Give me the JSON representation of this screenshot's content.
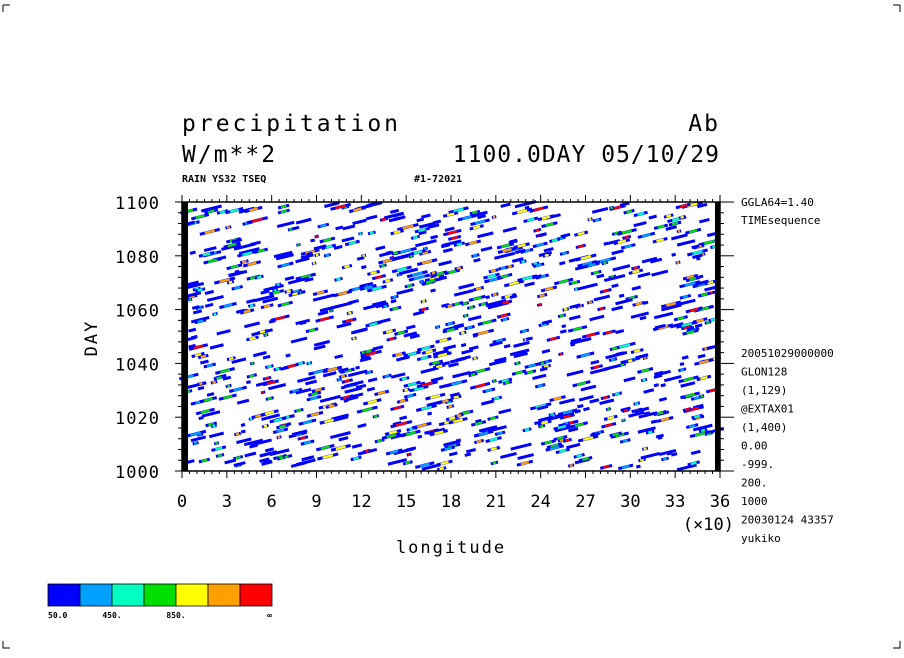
{
  "header": {
    "title": "precipitation",
    "units": "W/m**2",
    "corner_label": "Ab",
    "time_label": "1100.0DAY 05/10/29",
    "sub_left": "RAIN YS32 TSEQ",
    "sub_mid": "#1-72021"
  },
  "side_info": {
    "top": [
      "GGLA64=1.40",
      "TIMEsequence"
    ],
    "bottom": [
      "20051029000000",
      "GLON128",
      "(1,129)",
      "@EXTAX01",
      "(1,400)",
      "0.00",
      "-999.",
      "200.",
      "1000",
      "20030124  43357",
      "yukiko"
    ]
  },
  "chart_data": {
    "type": "heatmap",
    "xlabel": "longitude",
    "ylabel": "DAY",
    "x_multiplier_label": "(×10)",
    "xlim": [
      0,
      36
    ],
    "ylim": [
      1000,
      1100
    ],
    "x_ticks": [
      0,
      3,
      6,
      9,
      12,
      15,
      18,
      21,
      24,
      27,
      30,
      33,
      36
    ],
    "y_ticks": [
      1000,
      1020,
      1040,
      1060,
      1080,
      1100
    ],
    "color_levels": [
      50,
      250,
      450,
      650,
      850,
      1050,
      1250
    ],
    "legend_colors": [
      "#0000ff",
      "#00a0ff",
      "#00ffc0",
      "#00e000",
      "#ffff00",
      "#ffa000",
      "#ff0000"
    ],
    "legend_labels": [
      "50.0",
      "450.",
      "850.",
      "∞"
    ],
    "grid": false,
    "legend_position": "bottom-left"
  }
}
